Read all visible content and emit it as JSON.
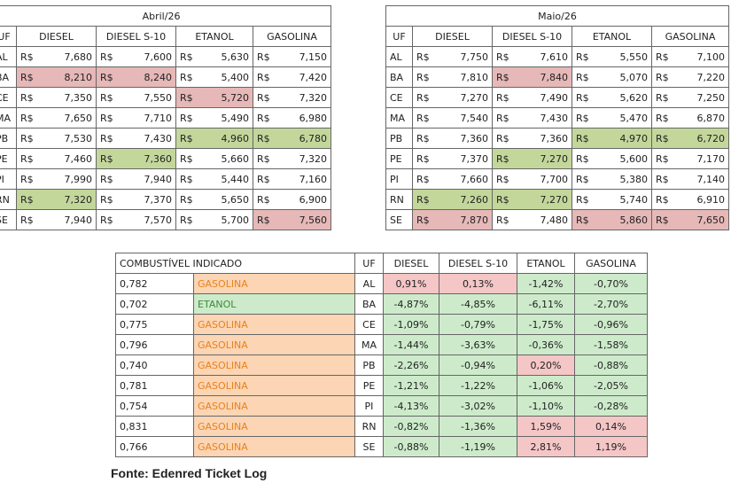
{
  "tables": [
    {
      "title": "Abril/26",
      "headers": [
        "UF",
        "DIESEL",
        "DIESEL S-10",
        "ETANOL",
        "GASOLINA"
      ],
      "currency": "R$",
      "rows": [
        {
          "uf": "AL",
          "prices": [
            "7,680",
            "7,600",
            "5,630",
            "7,150"
          ],
          "fills": [
            null,
            null,
            null,
            null
          ]
        },
        {
          "uf": "BA",
          "prices": [
            "8,210",
            "8,240",
            "5,400",
            "7,420"
          ],
          "fills": [
            "#e6b8b7",
            "#e6b8b7",
            null,
            null
          ]
        },
        {
          "uf": "CE",
          "prices": [
            "7,350",
            "7,550",
            "5,720",
            "7,320"
          ],
          "fills": [
            null,
            null,
            "#e6b8b7",
            null
          ]
        },
        {
          "uf": "MA",
          "prices": [
            "7,650",
            "7,710",
            "5,490",
            "6,980"
          ],
          "fills": [
            null,
            null,
            null,
            null
          ]
        },
        {
          "uf": "PB",
          "prices": [
            "7,530",
            "7,430",
            "4,960",
            "6,780"
          ],
          "fills": [
            null,
            null,
            "#c4d79b",
            "#c4d79b"
          ]
        },
        {
          "uf": "PE",
          "prices": [
            "7,460",
            "7,360",
            "5,660",
            "7,320"
          ],
          "fills": [
            null,
            "#c4d79b",
            null,
            null
          ]
        },
        {
          "uf": "PI",
          "prices": [
            "7,990",
            "7,940",
            "5,440",
            "7,160"
          ],
          "fills": [
            null,
            null,
            null,
            null
          ]
        },
        {
          "uf": "RN",
          "prices": [
            "7,320",
            "7,370",
            "5,650",
            "6,900"
          ],
          "fills": [
            "#c4d79b",
            null,
            null,
            null
          ]
        },
        {
          "uf": "SE",
          "prices": [
            "7,940",
            "7,570",
            "5,700",
            "7,560"
          ],
          "fills": [
            null,
            null,
            null,
            "#e6b8b7"
          ]
        }
      ]
    },
    {
      "title": "Maio/26",
      "headers": [
        "UF",
        "DIESEL",
        "DIESEL S-10",
        "ETANOL",
        "GASOLINA"
      ],
      "currency": "R$",
      "rows": [
        {
          "uf": "AL",
          "prices": [
            "7,750",
            "7,610",
            "5,550",
            "7,100"
          ],
          "fills": [
            null,
            null,
            null,
            null
          ]
        },
        {
          "uf": "BA",
          "prices": [
            "7,810",
            "7,840",
            "5,070",
            "7,220"
          ],
          "fills": [
            null,
            "#e6b8b7",
            null,
            null
          ]
        },
        {
          "uf": "CE",
          "prices": [
            "7,270",
            "7,490",
            "5,620",
            "7,250"
          ],
          "fills": [
            null,
            null,
            null,
            null
          ]
        },
        {
          "uf": "MA",
          "prices": [
            "7,540",
            "7,430",
            "5,470",
            "6,870"
          ],
          "fills": [
            null,
            null,
            null,
            null
          ]
        },
        {
          "uf": "PB",
          "prices": [
            "7,360",
            "7,360",
            "4,970",
            "6,720"
          ],
          "fills": [
            null,
            null,
            "#c4d79b",
            "#c4d79b"
          ]
        },
        {
          "uf": "PE",
          "prices": [
            "7,370",
            "7,270",
            "5,600",
            "7,170"
          ],
          "fills": [
            null,
            "#c4d79b",
            null,
            null
          ]
        },
        {
          "uf": "PI",
          "prices": [
            "7,660",
            "7,700",
            "5,380",
            "7,140"
          ],
          "fills": [
            null,
            null,
            null,
            null
          ]
        },
        {
          "uf": "RN",
          "prices": [
            "7,260",
            "7,270",
            "5,740",
            "6,910"
          ],
          "fills": [
            "#c4d79b",
            "#c4d79b",
            null,
            null
          ]
        },
        {
          "uf": "SE",
          "prices": [
            "7,870",
            "7,480",
            "5,860",
            "7,650"
          ],
          "fills": [
            "#e6b8b7",
            null,
            "#e6b8b7",
            "#e6b8b7"
          ]
        }
      ]
    }
  ],
  "summary": {
    "headers": [
      "COMBUSTÍVEL INDICADO",
      "UF",
      "DIESEL",
      "DIESEL S-10",
      "ETANOL",
      "GASOLINA"
    ],
    "rows": [
      {
        "ratio": "0,782",
        "fuel": "GASOLINA",
        "fuel_fill": "#fcd5b4",
        "fuel_color": "#e8821e",
        "uf": "AL",
        "changes": [
          "0,91%",
          "0,13%",
          "-1,42%",
          "-0,70%"
        ],
        "fills": [
          "#f4c6c6",
          "#f4c6c6",
          "#cdebcb",
          "#cdebcb"
        ]
      },
      {
        "ratio": "0,702",
        "fuel": "ETANOL",
        "fuel_fill": "#cdebcb",
        "fuel_color": "#3c8a3c",
        "uf": "BA",
        "changes": [
          "-4,87%",
          "-4,85%",
          "-6,11%",
          "-2,70%"
        ],
        "fills": [
          "#cdebcb",
          "#cdebcb",
          "#cdebcb",
          "#cdebcb"
        ]
      },
      {
        "ratio": "0,775",
        "fuel": "GASOLINA",
        "fuel_fill": "#fcd5b4",
        "fuel_color": "#e8821e",
        "uf": "CE",
        "changes": [
          "-1,09%",
          "-0,79%",
          "-1,75%",
          "-0,96%"
        ],
        "fills": [
          "#cdebcb",
          "#cdebcb",
          "#cdebcb",
          "#cdebcb"
        ]
      },
      {
        "ratio": "0,796",
        "fuel": "GASOLINA",
        "fuel_fill": "#fcd5b4",
        "fuel_color": "#e8821e",
        "uf": "MA",
        "changes": [
          "-1,44%",
          "-3,63%",
          "-0,36%",
          "-1,58%"
        ],
        "fills": [
          "#cdebcb",
          "#cdebcb",
          "#cdebcb",
          "#cdebcb"
        ]
      },
      {
        "ratio": "0,740",
        "fuel": "GASOLINA",
        "fuel_fill": "#fcd5b4",
        "fuel_color": "#e8821e",
        "uf": "PB",
        "changes": [
          "-2,26%",
          "-0,94%",
          "0,20%",
          "-0,88%"
        ],
        "fills": [
          "#cdebcb",
          "#cdebcb",
          "#f4c6c6",
          "#cdebcb"
        ]
      },
      {
        "ratio": "0,781",
        "fuel": "GASOLINA",
        "fuel_fill": "#fcd5b4",
        "fuel_color": "#e8821e",
        "uf": "PE",
        "changes": [
          "-1,21%",
          "-1,22%",
          "-1,06%",
          "-2,05%"
        ],
        "fills": [
          "#cdebcb",
          "#cdebcb",
          "#cdebcb",
          "#cdebcb"
        ]
      },
      {
        "ratio": "0,754",
        "fuel": "GASOLINA",
        "fuel_fill": "#fcd5b4",
        "fuel_color": "#e8821e",
        "uf": "PI",
        "changes": [
          "-4,13%",
          "-3,02%",
          "-1,10%",
          "-0,28%"
        ],
        "fills": [
          "#cdebcb",
          "#cdebcb",
          "#cdebcb",
          "#cdebcb"
        ]
      },
      {
        "ratio": "0,831",
        "fuel": "GASOLINA",
        "fuel_fill": "#fcd5b4",
        "fuel_color": "#e8821e",
        "uf": "RN",
        "changes": [
          "-0,82%",
          "-1,36%",
          "1,59%",
          "0,14%"
        ],
        "fills": [
          "#cdebcb",
          "#cdebcb",
          "#f4c6c6",
          "#f4c6c6"
        ]
      },
      {
        "ratio": "0,766",
        "fuel": "GASOLINA",
        "fuel_fill": "#fcd5b4",
        "fuel_color": "#e8821e",
        "uf": "SE",
        "changes": [
          "-0,88%",
          "-1,19%",
          "2,81%",
          "1,19%"
        ],
        "fills": [
          "#cdebcb",
          "#cdebcb",
          "#f4c6c6",
          "#f4c6c6"
        ]
      }
    ]
  },
  "source": "Fonte: Edenred Ticket Log"
}
